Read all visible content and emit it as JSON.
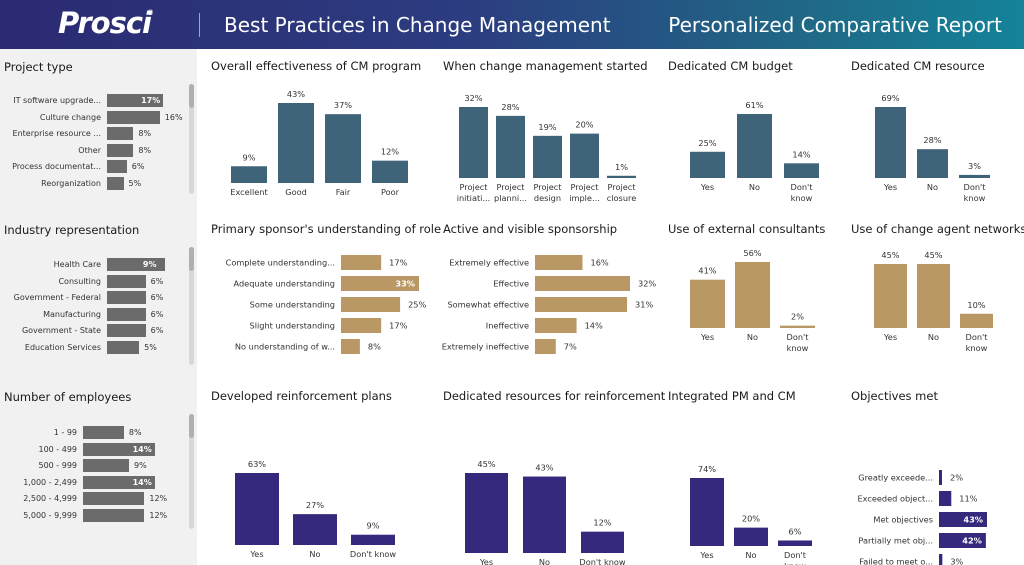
{
  "header": {
    "logo": "Prosci",
    "logo_mark": "®",
    "title": "Best Practices in Change Management",
    "subtitle": "Personalized Comparative Report"
  },
  "colors": {
    "header_start": "#2b2a72",
    "header_end": "#13839a",
    "sidebar_bar": "#6b6b6b",
    "teal": "#3f6479",
    "tan": "#b99865",
    "purple": "#34297d"
  },
  "sidebar": {
    "panels": [
      {
        "title": "Project type",
        "bars": [
          {
            "label": "IT software upgrade...",
            "value": 17,
            "display": "17%",
            "highlight": true
          },
          {
            "label": "Culture change",
            "value": 16,
            "display": "16%"
          },
          {
            "label": "Enterprise resource ...",
            "value": 8,
            "display": "8%"
          },
          {
            "label": "Other",
            "value": 8,
            "display": "8%"
          },
          {
            "label": "Process documentat...",
            "value": 6,
            "display": "6%"
          },
          {
            "label": "Reorganization",
            "value": 5,
            "display": "5%"
          }
        ]
      },
      {
        "title": "Industry representation",
        "bars": [
          {
            "label": "Health Care",
            "value": 9,
            "display": "9%",
            "highlight": true
          },
          {
            "label": "Consulting",
            "value": 6,
            "display": "6%"
          },
          {
            "label": "Government - Federal",
            "value": 6,
            "display": "6%"
          },
          {
            "label": "Manufacturing",
            "value": 6,
            "display": "6%"
          },
          {
            "label": "Government - State",
            "value": 6,
            "display": "6%"
          },
          {
            "label": "Education Services",
            "value": 5,
            "display": "5%"
          }
        ]
      },
      {
        "title": "Number of employees",
        "bars": [
          {
            "label": "1 - 99",
            "value": 8,
            "display": "8%"
          },
          {
            "label": "100 - 499",
            "value": 14,
            "display": "14%",
            "highlight": true
          },
          {
            "label": "500 - 999",
            "value": 9,
            "display": "9%"
          },
          {
            "label": "1,000 - 2,499",
            "value": 14,
            "display": "14%",
            "highlight": true
          },
          {
            "label": "2,500 - 4,999",
            "value": 12,
            "display": "12%"
          },
          {
            "label": "5,000 - 9,999",
            "value": 12,
            "display": "12%"
          }
        ]
      }
    ]
  },
  "chart_data": [
    {
      "type": "bar",
      "title": "Overall effectiveness of CM program",
      "color": "#3f6479",
      "categories": [
        [
          "Excellent"
        ],
        [
          "Good"
        ],
        [
          "Fair"
        ],
        [
          "Poor"
        ]
      ],
      "values": [
        9,
        43,
        37,
        12
      ],
      "labels": [
        "9%",
        "43%",
        "37%",
        "12%"
      ],
      "ylim": [
        0,
        43
      ]
    },
    {
      "type": "bar",
      "title": "When change management started",
      "color": "#3f6479",
      "categories": [
        [
          "Project",
          "initiati..."
        ],
        [
          "Project",
          "planni..."
        ],
        [
          "Project",
          "design"
        ],
        [
          "Project",
          "imple..."
        ],
        [
          "Project",
          "closure"
        ]
      ],
      "values": [
        32,
        28,
        19,
        20,
        1
      ],
      "labels": [
        "32%",
        "28%",
        "19%",
        "20%",
        "1%"
      ],
      "ylim": [
        0,
        32
      ]
    },
    {
      "type": "bar",
      "title": "Dedicated CM budget",
      "color": "#3f6479",
      "categories": [
        [
          "Yes"
        ],
        [
          "No"
        ],
        [
          "Don't",
          "know"
        ]
      ],
      "values": [
        25,
        61,
        14
      ],
      "labels": [
        "25%",
        "61%",
        "14%"
      ],
      "ylim": [
        0,
        61
      ]
    },
    {
      "type": "bar",
      "title": "Dedicated CM resource",
      "color": "#3f6479",
      "categories": [
        [
          "Yes"
        ],
        [
          "No"
        ],
        [
          "Don't",
          "know"
        ]
      ],
      "values": [
        69,
        28,
        3
      ],
      "labels": [
        "69%",
        "28%",
        "3%"
      ],
      "ylim": [
        0,
        69
      ]
    },
    {
      "type": "hbar",
      "title": "Primary sponsor's understanding of role",
      "color": "#b99865",
      "categories": [
        "Complete understanding...",
        "Adequate understanding",
        "Some understanding",
        "Slight understanding",
        "No understanding of w..."
      ],
      "values": [
        17,
        33,
        25,
        17,
        8
      ],
      "labels": [
        "17%",
        "33%",
        "25%",
        "17%",
        "8%"
      ],
      "highlight": [
        false,
        true,
        false,
        false,
        false
      ],
      "xlim": [
        0,
        33
      ]
    },
    {
      "type": "hbar",
      "title": "Active and visible sponsorship",
      "color": "#b99865",
      "categories": [
        "Extremely effective",
        "Effective",
        "Somewhat effective",
        "Ineffective",
        "Extremely ineffective"
      ],
      "values": [
        16,
        32,
        31,
        14,
        7
      ],
      "labels": [
        "16%",
        "32%",
        "31%",
        "14%",
        "7%"
      ],
      "highlight": [
        false,
        false,
        false,
        false,
        false
      ],
      "xlim": [
        0,
        32
      ]
    },
    {
      "type": "bar",
      "title": "Use of external consultants",
      "color": "#b99865",
      "categories": [
        [
          "Yes"
        ],
        [
          "No"
        ],
        [
          "Don't",
          "know"
        ]
      ],
      "values": [
        41,
        56,
        2
      ],
      "labels": [
        "41%",
        "56%",
        "2%"
      ],
      "ylim": [
        0,
        56
      ]
    },
    {
      "type": "bar",
      "title": "Use of change agent networks",
      "color": "#b99865",
      "categories": [
        [
          "Yes"
        ],
        [
          "No"
        ],
        [
          "Don't",
          "know"
        ]
      ],
      "values": [
        45,
        45,
        10
      ],
      "labels": [
        "45%",
        "45%",
        "10%"
      ],
      "ylim": [
        0,
        45
      ]
    },
    {
      "type": "bar",
      "title": "Developed reinforcement plans",
      "color": "#34297d",
      "categories": [
        [
          "Yes"
        ],
        [
          "No"
        ],
        [
          "Don't know"
        ]
      ],
      "values": [
        63,
        27,
        9
      ],
      "labels": [
        "63%",
        "27%",
        "9%"
      ],
      "ylim": [
        0,
        63
      ]
    },
    {
      "type": "bar",
      "title": "Dedicated resources for reinforcement",
      "color": "#34297d",
      "categories": [
        [
          "Yes"
        ],
        [
          "No"
        ],
        [
          "Don't know"
        ]
      ],
      "values": [
        45,
        43,
        12
      ],
      "labels": [
        "45%",
        "43%",
        "12%"
      ],
      "ylim": [
        0,
        45
      ]
    },
    {
      "type": "bar",
      "title": "Integrated PM and CM",
      "color": "#34297d",
      "categories": [
        [
          "Yes"
        ],
        [
          "No"
        ],
        [
          "Don't",
          "know"
        ]
      ],
      "values": [
        74,
        20,
        6
      ],
      "labels": [
        "74%",
        "20%",
        "6%"
      ],
      "ylim": [
        0,
        74
      ]
    },
    {
      "type": "hbar",
      "title": "Objectives met",
      "color": "#34297d",
      "categories": [
        "Greatly exceede...",
        "Exceeded object...",
        "Met objectives",
        "Partially met obj...",
        "Failed to meet o..."
      ],
      "values": [
        2,
        11,
        43,
        42,
        3
      ],
      "labels": [
        "2%",
        "11%",
        "43%",
        "42%",
        "3%"
      ],
      "highlight": [
        false,
        false,
        true,
        true,
        false
      ],
      "xlim": [
        0,
        43
      ]
    }
  ]
}
